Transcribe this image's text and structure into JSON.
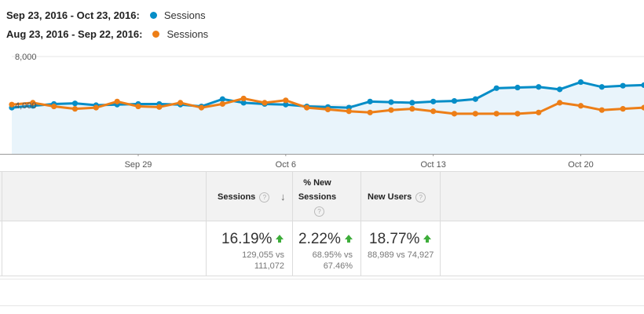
{
  "legend": [
    {
      "range": "Sep 23, 2016 - Oct 23, 2016:",
      "series": "Sessions",
      "color": "#058dc7"
    },
    {
      "range": "Aug 23, 2016 - Sep 22, 2016:",
      "series": "Sessions",
      "color": "#ed7e17"
    }
  ],
  "chart_data": {
    "type": "line",
    "x": [
      "Sep 23",
      "Sep 24",
      "Sep 25",
      "Sep 26",
      "Sep 27",
      "Sep 28",
      "Sep 29",
      "Sep 30",
      "Oct 1",
      "Oct 2",
      "Oct 3",
      "Oct 4",
      "Oct 5",
      "Oct 6",
      "Oct 7",
      "Oct 8",
      "Oct 9",
      "Oct 10",
      "Oct 11",
      "Oct 12",
      "Oct 13",
      "Oct 14",
      "Oct 15",
      "Oct 16",
      "Oct 17",
      "Oct 18",
      "Oct 19",
      "Oct 20",
      "Oct 21",
      "Oct 22",
      "Oct 23"
    ],
    "x_ticks": [
      "Sep 29",
      "Oct 6",
      "Oct 13",
      "Oct 20"
    ],
    "y_ticks": [
      "8,000",
      "4,000"
    ],
    "ylim": [
      0,
      8000
    ],
    "grid": "horizontal",
    "series": [
      {
        "name": "Sessions",
        "color": "#058dc7",
        "fill": "#e9f4fb",
        "values": [
          3800,
          3950,
          4100,
          4150,
          4000,
          4050,
          4100,
          4100,
          4050,
          3900,
          4500,
          4200,
          4100,
          4050,
          3900,
          3850,
          3800,
          4300,
          4250,
          4200,
          4300,
          4350,
          4500,
          5400,
          5450,
          5500,
          5300,
          5900,
          5500,
          5600,
          5650
        ]
      },
      {
        "name": "Sessions",
        "color": "#ed7e17",
        "values": [
          4050,
          4200,
          3900,
          3700,
          3800,
          4300,
          3900,
          3850,
          4200,
          3800,
          4100,
          4550,
          4200,
          4400,
          3800,
          3650,
          3500,
          3400,
          3600,
          3700,
          3500,
          3300,
          3300,
          3300,
          3300,
          3400,
          4200,
          3950,
          3600,
          3700,
          3800
        ]
      }
    ]
  },
  "table": {
    "columns": [
      {
        "label": "Sessions"
      },
      {
        "label": "% New Sessions"
      },
      {
        "label": "New Users"
      }
    ],
    "row": [
      {
        "pct": "16.19%",
        "compare_1": "129,055 vs",
        "compare_2": "111,072"
      },
      {
        "pct": "2.22%",
        "compare_1": "68.95% vs",
        "compare_2": "67.46%"
      },
      {
        "pct": "18.77%",
        "compare_1": "88,989 vs 74,927",
        "compare_2": ""
      }
    ],
    "help_glyph": "?",
    "sort_glyph": "↓",
    "trend_color": "#3dad3a"
  }
}
